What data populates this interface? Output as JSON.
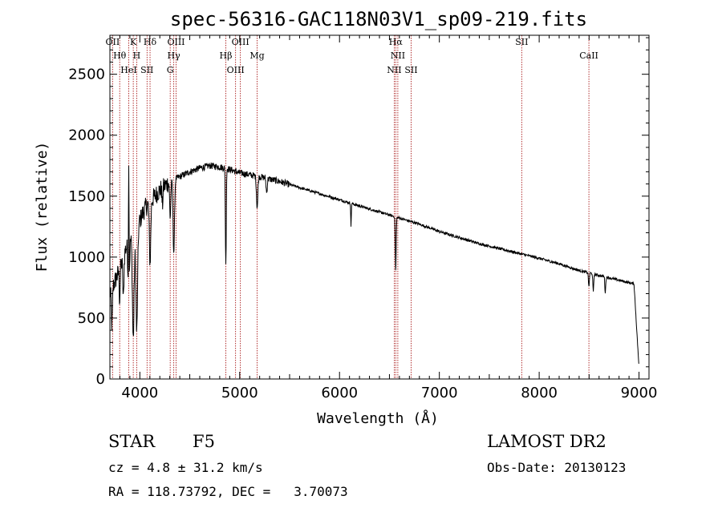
{
  "chart_data": {
    "type": "line",
    "title": "spec-56316-GAC118N03V1_sp09-219.fits",
    "xlabel": "Wavelength (Å)",
    "ylabel": "Flux (relative)",
    "xlim": [
      3700,
      9100
    ],
    "ylim": [
      0,
      2820
    ],
    "xticks": [
      4000,
      5000,
      6000,
      7000,
      8000,
      9000
    ],
    "yticks": [
      0,
      500,
      1000,
      1500,
      2000,
      2500
    ],
    "spectral_lines": [
      {
        "label": "OII",
        "x": 3727
      },
      {
        "label": "Hθ",
        "x": 3798
      },
      {
        "label": "HeI",
        "x": 3889
      },
      {
        "label": "K",
        "x": 3934
      },
      {
        "label": "H",
        "x": 3969
      },
      {
        "label": "SII",
        "x": 4072
      },
      {
        "label": "Hδ",
        "x": 4102
      },
      {
        "label": "Hγ",
        "x": 4340
      },
      {
        "label": "G",
        "x": 4304
      },
      {
        "label": "OIII",
        "x": 4363
      },
      {
        "label": "Hβ",
        "x": 4861
      },
      {
        "label": "OIII",
        "x": 4959
      },
      {
        "label": "OIII",
        "x": 5007
      },
      {
        "label": "Mg",
        "x": 5175
      },
      {
        "label": "NII",
        "x": 6548
      },
      {
        "label": "Hα",
        "x": 6563
      },
      {
        "label": "NII",
        "x": 6584
      },
      {
        "label": "SII",
        "x": 6717
      },
      {
        "label": "SII",
        "x": 7825
      },
      {
        "label": "CaII",
        "x": 8498
      }
    ],
    "series": [
      {
        "continuum": [
          [
            3700,
            700
          ],
          [
            3750,
            800
          ],
          [
            3800,
            900
          ],
          [
            3850,
            1050
          ],
          [
            3900,
            1150
          ],
          [
            3950,
            1200
          ],
          [
            4000,
            1300
          ],
          [
            4050,
            1400
          ],
          [
            4100,
            1450
          ],
          [
            4200,
            1550
          ],
          [
            4300,
            1620
          ],
          [
            4400,
            1660
          ],
          [
            4500,
            1700
          ],
          [
            4600,
            1730
          ],
          [
            4700,
            1750
          ],
          [
            4800,
            1740
          ],
          [
            4900,
            1720
          ],
          [
            5000,
            1690
          ],
          [
            5200,
            1660
          ],
          [
            5400,
            1620
          ],
          [
            5600,
            1570
          ],
          [
            5800,
            1520
          ],
          [
            6000,
            1470
          ],
          [
            6200,
            1420
          ],
          [
            6400,
            1370
          ],
          [
            6600,
            1320
          ],
          [
            6800,
            1270
          ],
          [
            7000,
            1210
          ],
          [
            7200,
            1160
          ],
          [
            7400,
            1110
          ],
          [
            7600,
            1070
          ],
          [
            7800,
            1030
          ],
          [
            8000,
            990
          ],
          [
            8200,
            945
          ],
          [
            8400,
            890
          ],
          [
            8600,
            850
          ],
          [
            8800,
            810
          ],
          [
            8950,
            780
          ],
          [
            9000,
            90
          ]
        ],
        "absorption": [
          [
            3720,
            300,
            8
          ],
          [
            3798,
            250,
            6
          ],
          [
            3835,
            350,
            8
          ],
          [
            3889,
            500,
            10
          ],
          [
            3934,
            850,
            12
          ],
          [
            3969,
            850,
            12
          ],
          [
            4102,
            500,
            10
          ],
          [
            4226,
            150,
            6
          ],
          [
            4304,
            300,
            8
          ],
          [
            4340,
            600,
            10
          ],
          [
            4861,
            800,
            6
          ],
          [
            5175,
            250,
            10
          ],
          [
            5270,
            120,
            8
          ],
          [
            6115,
            200,
            4
          ],
          [
            6563,
            450,
            6
          ],
          [
            8498,
            120,
            6
          ],
          [
            8542,
            150,
            6
          ],
          [
            8662,
            130,
            6
          ]
        ],
        "emission": [
          [
            3889,
            1200,
            4
          ]
        ]
      }
    ]
  },
  "info": {
    "object_type": "STAR",
    "subclass": "F5",
    "survey": "LAMOST DR2",
    "velocity": "cz = 4.8 ± 31.2 km/s",
    "obs_date": "Obs-Date: 20130123",
    "coords": "RA = 118.73792, DEC =   3.70073"
  }
}
